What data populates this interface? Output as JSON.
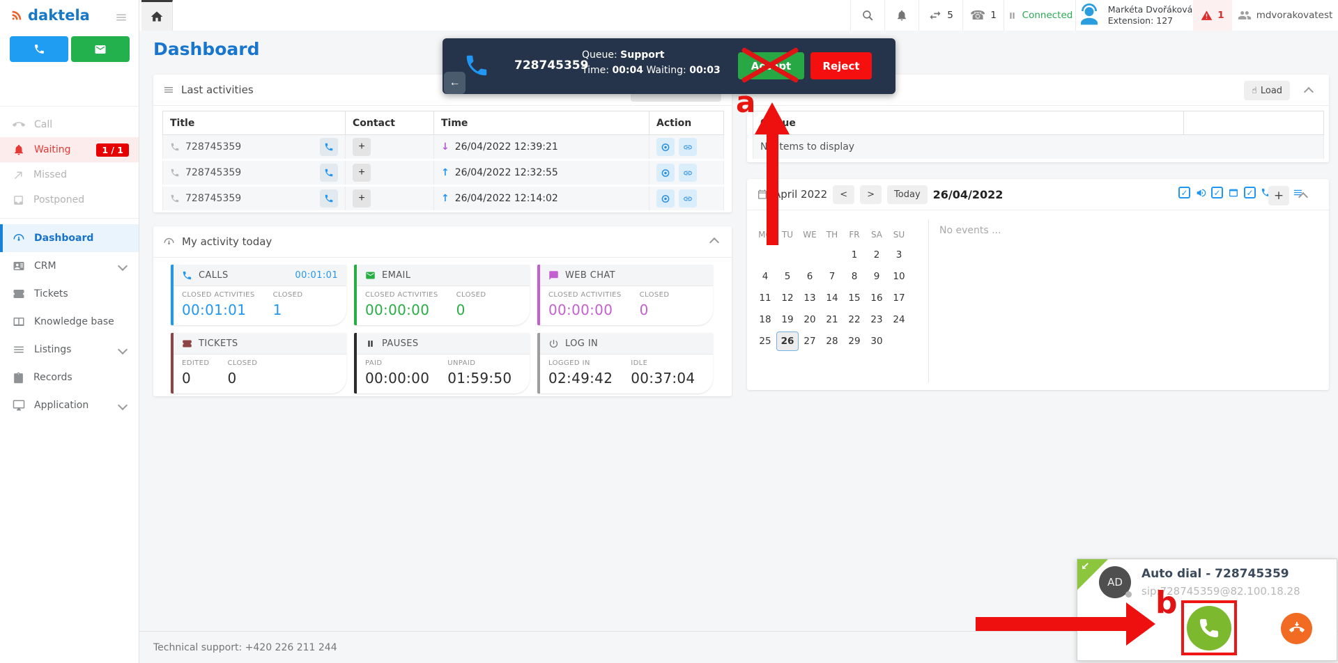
{
  "branding": {
    "logo": "daktela"
  },
  "topbar": {
    "transfers": "5",
    "calls": "1",
    "status": "Connected",
    "user": {
      "name": "Markéta Dvořáková",
      "extension": "Extension: 127"
    },
    "warnings": "1",
    "account": "mdvorakovatest"
  },
  "sidebar": {
    "items": [
      {
        "label": "Call"
      },
      {
        "label": "Waiting",
        "badge": "1 / 1"
      },
      {
        "label": "Missed"
      },
      {
        "label": "Postponed"
      },
      {
        "label": "Dashboard"
      },
      {
        "label": "CRM"
      },
      {
        "label": "Tickets"
      },
      {
        "label": "Knowledge base"
      },
      {
        "label": "Listings"
      },
      {
        "label": "Records"
      },
      {
        "label": "Application"
      }
    ]
  },
  "page": {
    "title": "Dashboard"
  },
  "call_popup": {
    "number": "728745359",
    "queue_label": "Queue:",
    "queue_value": "Support",
    "time_label": "Time:",
    "time_value": "00:04",
    "waiting_label": "Waiting:",
    "waiting_value": "00:03",
    "accept_label": "Accept",
    "reject_label": "Reject",
    "back_glyph": "←"
  },
  "last_activities": {
    "title": "Last activities",
    "columns": [
      "Title",
      "Contact",
      "Time",
      "Action"
    ],
    "rows": [
      {
        "title": "728745359",
        "contact_add": "+",
        "arrow": "↓",
        "time": "26/04/2022 12:39:21"
      },
      {
        "title": "728745359",
        "contact_add": "+",
        "arrow": "↑",
        "time": "26/04/2022 12:32:55"
      },
      {
        "title": "728745359",
        "contact_add": "+",
        "arrow": "↑",
        "time": "26/04/2022 12:14:02"
      }
    ]
  },
  "queue_panel": {
    "load_label": "Load",
    "load_icon": "☝",
    "column_queue": "Queue",
    "empty_text": "No items to display"
  },
  "calendar": {
    "month_label": "April 2022",
    "prev_glyph": "<",
    "next_glyph": ">",
    "today_label": "Today",
    "selected_date": "26/04/2022",
    "add_glyph": "+",
    "weekdays": [
      "MO",
      "TU",
      "WE",
      "TH",
      "FR",
      "SA",
      "SU"
    ],
    "weeks": [
      [
        "",
        "",
        "",
        "",
        "1",
        "2",
        "3"
      ],
      [
        "4",
        "5",
        "6",
        "7",
        "8",
        "9",
        "10"
      ],
      [
        "11",
        "12",
        "13",
        "14",
        "15",
        "16",
        "17"
      ],
      [
        "18",
        "19",
        "20",
        "21",
        "22",
        "23",
        "24"
      ],
      [
        "25",
        "26",
        "27",
        "28",
        "29",
        "30",
        ""
      ]
    ],
    "selected_day": "26",
    "no_events": "No events ..."
  },
  "my_activity": {
    "title": "My activity today",
    "cards": [
      {
        "name": "CALLS",
        "header_value": "00:01:01",
        "color": "#2196f3",
        "stats": [
          {
            "label": "CLOSED ACTIVITIES",
            "value": "00:01:01"
          },
          {
            "label": "CLOSED",
            "value": "1"
          }
        ]
      },
      {
        "name": "EMAIL",
        "color": "#27ae43",
        "stats": [
          {
            "label": "CLOSED ACTIVITIES",
            "value": "00:00:00"
          },
          {
            "label": "CLOSED",
            "value": "0"
          }
        ]
      },
      {
        "name": "WEB CHAT",
        "color": "#c45fd0",
        "stats": [
          {
            "label": "CLOSED ACTIVITIES",
            "value": "00:00:00"
          },
          {
            "label": "CLOSED",
            "value": "0"
          }
        ]
      },
      {
        "name": "TICKETS",
        "color": "#8d4444",
        "stats": [
          {
            "label": "EDITED",
            "value": "0"
          },
          {
            "label": "CLOSED",
            "value": "0"
          }
        ]
      },
      {
        "name": "PAUSES",
        "color": "#2b2b2b",
        "stats": [
          {
            "label": "PAID",
            "value": "00:00:00"
          },
          {
            "label": "UNPAID",
            "value": "01:59:50"
          }
        ]
      },
      {
        "name": "LOG IN",
        "color": "#9e9e9e",
        "stats": [
          {
            "label": "LOGGED IN",
            "value": "02:49:42"
          },
          {
            "label": "IDLE",
            "value": "00:37:04"
          }
        ]
      }
    ]
  },
  "autodial": {
    "title": "Auto dial - 728745359",
    "sip": "sip:728745359@82.100.18.28",
    "initials": "AD",
    "corner_glyph": "↙"
  },
  "annotations": {
    "a_label": "a",
    "b_label": "b"
  },
  "footer": {
    "text": "Technical support: +420 226 211 244"
  }
}
